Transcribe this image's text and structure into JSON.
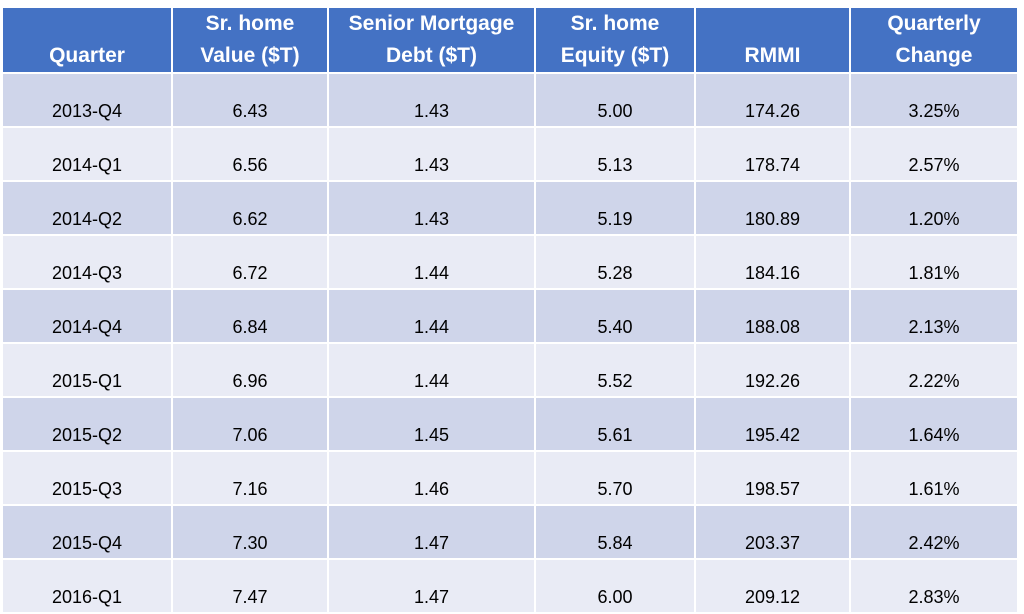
{
  "chart_data": {
    "type": "table",
    "header_lines": [
      [
        "Quarter"
      ],
      [
        "Sr. home",
        "Value ($T)"
      ],
      [
        "Senior Mortgage",
        "Debt ($T)"
      ],
      [
        "Sr. home",
        "Equity ($T)"
      ],
      [
        "RMMI"
      ],
      [
        "Quarterly",
        "Change"
      ]
    ],
    "rows": [
      [
        "2013-Q4",
        "6.43",
        "1.43",
        "5.00",
        "174.26",
        "3.25%"
      ],
      [
        "2014-Q1",
        "6.56",
        "1.43",
        "5.13",
        "178.74",
        "2.57%"
      ],
      [
        "2014-Q2",
        "6.62",
        "1.43",
        "5.19",
        "180.89",
        "1.20%"
      ],
      [
        "2014-Q3",
        "6.72",
        "1.44",
        "5.28",
        "184.16",
        "1.81%"
      ],
      [
        "2014-Q4",
        "6.84",
        "1.44",
        "5.40",
        "188.08",
        "2.13%"
      ],
      [
        "2015-Q1",
        "6.96",
        "1.44",
        "5.52",
        "192.26",
        "2.22%"
      ],
      [
        "2015-Q2",
        "7.06",
        "1.45",
        "5.61",
        "195.42",
        "1.64%"
      ],
      [
        "2015-Q3",
        "7.16",
        "1.46",
        "5.70",
        "198.57",
        "1.61%"
      ],
      [
        "2015-Q4",
        "7.30",
        "1.47",
        "5.84",
        "203.37",
        "2.42%"
      ],
      [
        "2016-Q1",
        "7.47",
        "1.47",
        "6.00",
        "209.12",
        "2.83%"
      ]
    ]
  },
  "colors": {
    "header_bg": "#4472c4",
    "header_text": "#ffffff",
    "row_odd": "#cfd5ea",
    "row_even": "#e9ebf5"
  }
}
